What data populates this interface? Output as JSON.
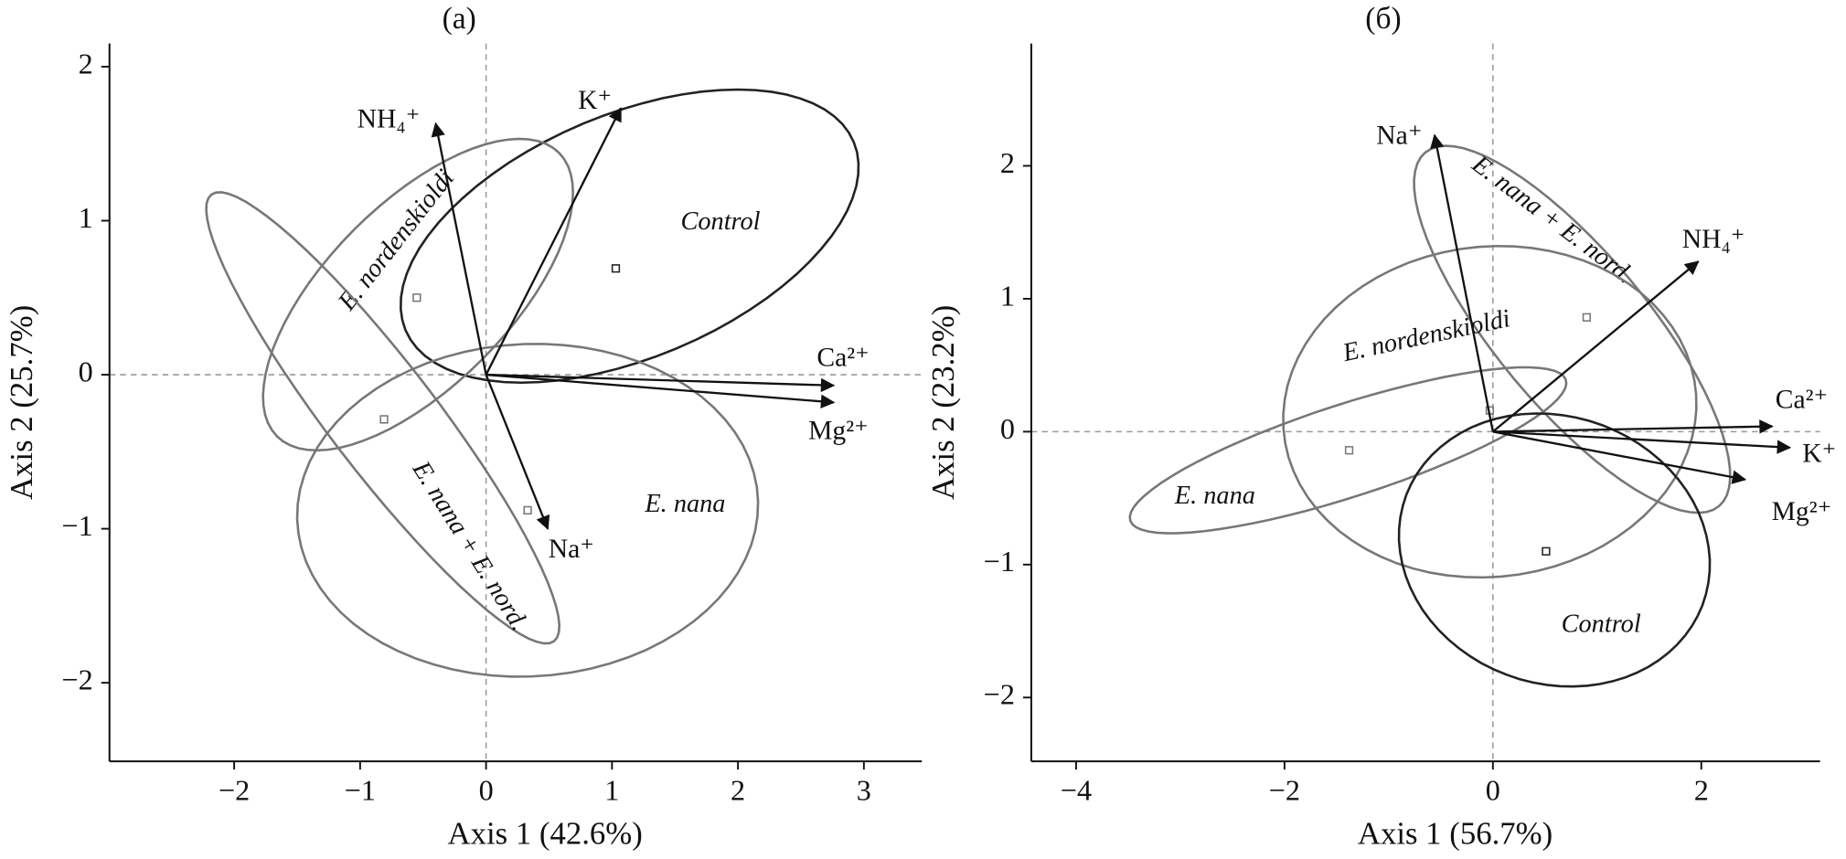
{
  "chart_data": [
    {
      "type": "biplot",
      "title": "(a)",
      "x_label": "Axis 1 (42.6%)",
      "y_label": "Axis 2 (25.7%)",
      "xlim": [
        -2.99,
        3.46
      ],
      "ylim": [
        -2.51,
        2.15
      ],
      "xticks": [
        {
          "value": -2,
          "label": "−2"
        },
        {
          "value": -1,
          "label": "−1"
        },
        0,
        1,
        2,
        3
      ],
      "yticks": [
        {
          "value": -2,
          "label": "−2"
        },
        {
          "value": -1,
          "label": "−1"
        },
        0,
        1,
        2
      ],
      "zero_lines": true,
      "arrows": [
        {
          "name": "NH₄⁺",
          "x": -0.4,
          "y": 1.63
        },
        {
          "name": "K⁺",
          "x": 1.07,
          "y": 1.73
        },
        {
          "name": "Ca²⁺",
          "x": 2.76,
          "y": -0.07
        },
        {
          "name": "Mg²⁺",
          "x": 2.76,
          "y": -0.18
        },
        {
          "name": "Na⁺",
          "x": 0.49,
          "y": -1.0
        }
      ],
      "groups": [
        {
          "name": "Control",
          "color": "#222222",
          "x": 1.03,
          "y": 0.69,
          "center": [
            1.14,
            0.9
          ],
          "u": [
            1.78,
            0.61
          ],
          "v": [
            0.37,
            -0.73
          ]
        },
        {
          "name": "E. nordenskioldi",
          "color": "#777777",
          "x": -0.55,
          "y": 0.5,
          "center": [
            -0.54,
            0.52
          ],
          "u": [
            1.12,
            0.92
          ],
          "v": [
            0.51,
            -0.42
          ]
        },
        {
          "name": "E. nana + E. nord.",
          "color": "#777777",
          "x": -0.81,
          "y": -0.29,
          "center": [
            -0.82,
            -0.28
          ],
          "u": [
            1.36,
            -1.45
          ],
          "v": [
            -0.34,
            -0.21
          ]
        },
        {
          "name": "E. nana",
          "color": "#777777",
          "x": 0.33,
          "y": -0.88,
          "center": [
            0.33,
            -0.88
          ],
          "u": [
            1.82,
            0.15
          ],
          "v": [
            0.19,
            -1.07
          ]
        }
      ]
    },
    {
      "type": "biplot",
      "title": "(б)",
      "x_label": "Axis 1 (56.7%)",
      "y_label": "Axis 2 (23.2%)",
      "xlim": [
        -4.43,
        3.14
      ],
      "ylim": [
        -2.48,
        2.92
      ],
      "xticks": [
        {
          "value": -4,
          "label": "−4"
        },
        {
          "value": -2,
          "label": "−2"
        },
        0,
        2
      ],
      "yticks": [
        {
          "value": -2,
          "label": "−2"
        },
        {
          "value": -1,
          "label": "−1"
        },
        0,
        1,
        2
      ],
      "zero_lines": true,
      "arrows": [
        {
          "name": "Na⁺",
          "x": -0.56,
          "y": 2.23
        },
        {
          "name": "NH₄⁺",
          "x": 1.97,
          "y": 1.28
        },
        {
          "name": "Ca²⁺",
          "x": 2.68,
          "y": 0.04
        },
        {
          "name": "K⁺",
          "x": 2.85,
          "y": -0.12
        },
        {
          "name": "Mg²⁺",
          "x": 2.42,
          "y": -0.36
        }
      ],
      "groups": [
        {
          "name": "E. nana + E. nord.",
          "color": "#777777",
          "x": 0.9,
          "y": 0.86,
          "center": [
            0.76,
            0.77
          ],
          "u": [
            1.41,
            -1.33
          ],
          "v": [
            -0.56,
            -0.37
          ]
        },
        {
          "name": "E. nordenskioldi",
          "color": "#777777",
          "x": -0.03,
          "y": 0.16,
          "center": [
            -0.03,
            0.15
          ],
          "u": [
            1.98,
            0.13
          ],
          "v": [
            0.11,
            -1.24
          ]
        },
        {
          "name": "E. nana",
          "color": "#777777",
          "x": -1.38,
          "y": -0.14,
          "center": [
            -1.39,
            -0.14
          ],
          "u": [
            2.09,
            0.53
          ],
          "v": [
            0.14,
            -0.33
          ]
        },
        {
          "name": "Control",
          "color": "#222222",
          "x": 0.51,
          "y": -0.9,
          "center": [
            0.59,
            -0.89
          ],
          "u": [
            0.9,
            -0.88
          ],
          "v": [
            -1.19,
            -0.53
          ]
        }
      ]
    }
  ]
}
